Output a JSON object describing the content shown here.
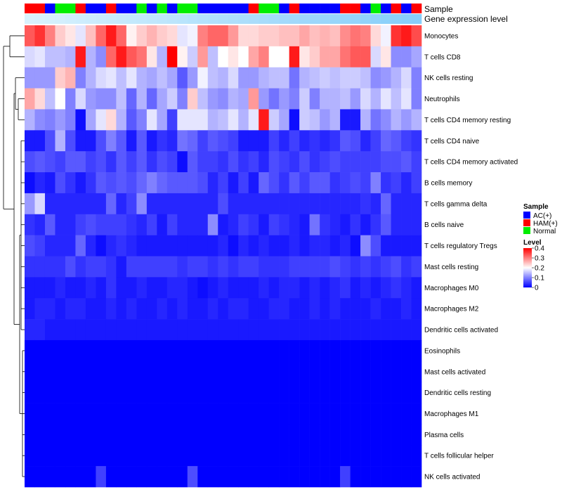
{
  "chart_data": {
    "type": "heatmap",
    "annotation_labels": {
      "sample": "Sample",
      "expression": "Gene expression level"
    },
    "sample_groups": [
      "HAM",
      "HAM",
      "AC",
      "Normal",
      "Normal",
      "HAM",
      "AC",
      "AC",
      "HAM",
      "AC",
      "AC",
      "Normal",
      "AC",
      "Normal",
      "AC",
      "Normal",
      "Normal",
      "AC",
      "AC",
      "AC",
      "AC",
      "AC",
      "HAM",
      "Normal",
      "Normal",
      "AC",
      "HAM",
      "AC",
      "AC",
      "AC",
      "AC",
      "HAM",
      "HAM",
      "AC",
      "Normal",
      "AC",
      "HAM",
      "AC",
      "HAM"
    ],
    "sample_colors": {
      "AC": "#0000FF",
      "HAM": "#FF0000",
      "Normal": "#00EE00"
    },
    "expression_bar_color": "#87CEFA",
    "expression_bar_color_light": "#D9F2FD",
    "rows": [
      "Monocytes",
      "T cells CD8",
      "NK cells resting",
      "Neutrophils",
      "T cells CD4 memory resting",
      "T cells CD4 naive",
      "T cells CD4 memory activated",
      "B cells memory",
      "T cells gamma delta",
      "B cells naive",
      "T cells regulatory  Tregs",
      "Mast cells resting",
      "Macrophages M0",
      "Macrophages M2",
      "Dendritic cells activated",
      "Eosinophils",
      "Mast cells activated",
      "Dendritic cells resting",
      "Macrophages M1",
      "Plasma cells",
      "T cells follicular helper",
      "NK cells activated"
    ],
    "values": [
      [
        0.33,
        0.36,
        0.3,
        0.24,
        0.22,
        0.18,
        0.25,
        0.32,
        0.38,
        0.32,
        0.21,
        0.24,
        0.26,
        0.24,
        0.23,
        0.18,
        0.19,
        0.3,
        0.32,
        0.32,
        0.28,
        0.23,
        0.23,
        0.24,
        0.24,
        0.25,
        0.25,
        0.27,
        0.25,
        0.26,
        0.25,
        0.29,
        0.31,
        0.3,
        0.23,
        0.19,
        0.36,
        0.38,
        0.34
      ],
      [
        0.17,
        0.18,
        0.15,
        0.15,
        0.14,
        0.38,
        0.14,
        0.11,
        0.32,
        0.38,
        0.33,
        0.31,
        0.22,
        0.14,
        0.4,
        0.21,
        0.16,
        0.28,
        0.15,
        0.2,
        0.22,
        0.2,
        0.27,
        0.3,
        0.2,
        0.2,
        0.38,
        0.22,
        0.24,
        0.27,
        0.27,
        0.31,
        0.33,
        0.33,
        0.17,
        0.22,
        0.11,
        0.11,
        0.13
      ],
      [
        0.12,
        0.12,
        0.12,
        0.24,
        0.26,
        0.1,
        0.14,
        0.17,
        0.18,
        0.15,
        0.18,
        0.14,
        0.13,
        0.15,
        0.13,
        0.07,
        0.12,
        0.19,
        0.15,
        0.14,
        0.17,
        0.12,
        0.12,
        0.14,
        0.15,
        0.15,
        0.09,
        0.14,
        0.15,
        0.16,
        0.15,
        0.16,
        0.16,
        0.15,
        0.11,
        0.12,
        0.14,
        0.17,
        0.1
      ],
      [
        0.27,
        0.23,
        0.15,
        0.2,
        0.1,
        0.17,
        0.12,
        0.11,
        0.11,
        0.15,
        0.08,
        0.14,
        0.08,
        0.13,
        0.16,
        0.1,
        0.24,
        0.15,
        0.12,
        0.11,
        0.14,
        0.13,
        0.28,
        0.12,
        0.09,
        0.12,
        0.1,
        0.16,
        0.1,
        0.14,
        0.14,
        0.15,
        0.12,
        0.17,
        0.14,
        0.18,
        0.15,
        0.18,
        0.1
      ],
      [
        0.14,
        0.11,
        0.1,
        0.12,
        0.1,
        0.01,
        0.13,
        0.18,
        0.23,
        0.14,
        0.07,
        0.1,
        0.18,
        0.13,
        0.05,
        0.18,
        0.18,
        0.18,
        0.14,
        0.15,
        0.18,
        0.14,
        0.18,
        0.38,
        0.16,
        0.13,
        0.01,
        0.16,
        0.15,
        0.12,
        0.14,
        0.02,
        0.02,
        0.14,
        0.09,
        0.11,
        0.14,
        0.12,
        0.14
      ],
      [
        0.02,
        0.02,
        0.06,
        0.14,
        0.06,
        0.02,
        0.02,
        0.06,
        0.1,
        0.07,
        0.02,
        0.07,
        0.02,
        0.04,
        0.03,
        0.09,
        0.08,
        0.05,
        0.07,
        0.06,
        0.05,
        0.02,
        0.02,
        0.02,
        0.05,
        0.03,
        0.05,
        0.03,
        0.04,
        0.03,
        0.04,
        0.07,
        0.06,
        0.03,
        0.05,
        0.08,
        0.07,
        0.05,
        0.04
      ],
      [
        0.06,
        0.07,
        0.06,
        0.05,
        0.07,
        0.07,
        0.05,
        0.06,
        0.04,
        0.07,
        0.05,
        0.07,
        0.04,
        0.06,
        0.05,
        0.01,
        0.07,
        0.05,
        0.05,
        0.04,
        0.06,
        0.04,
        0.05,
        0.03,
        0.06,
        0.05,
        0.04,
        0.06,
        0.04,
        0.05,
        0.06,
        0.05,
        0.05,
        0.05,
        0.05,
        0.06,
        0.06,
        0.07,
        0.05
      ],
      [
        0.01,
        0.03,
        0.02,
        0.06,
        0.04,
        0.02,
        0.04,
        0.07,
        0.06,
        0.07,
        0.06,
        0.08,
        0.1,
        0.08,
        0.07,
        0.07,
        0.07,
        0.06,
        0.03,
        0.05,
        0.02,
        0.05,
        0.02,
        0.08,
        0.06,
        0.04,
        0.07,
        0.05,
        0.07,
        0.07,
        0.04,
        0.05,
        0.06,
        0.05,
        0.1,
        0.04,
        0.05,
        0.03,
        0.05
      ],
      [
        0.12,
        0.17,
        0.03,
        0.03,
        0.03,
        0.03,
        0.03,
        0.03,
        0.08,
        0.03,
        0.05,
        0.11,
        0.03,
        0.03,
        0.03,
        0.03,
        0.03,
        0.03,
        0.03,
        0.06,
        0.03,
        0.03,
        0.03,
        0.03,
        0.03,
        0.03,
        0.03,
        0.03,
        0.03,
        0.03,
        0.03,
        0.03,
        0.03,
        0.04,
        0.03,
        0.08,
        0.03,
        0.03,
        0.03
      ],
      [
        0.04,
        0.03,
        0.07,
        0.03,
        0.03,
        0.05,
        0.06,
        0.05,
        0.05,
        0.05,
        0.04,
        0.03,
        0.05,
        0.02,
        0.05,
        0.03,
        0.03,
        0.03,
        0.11,
        0.02,
        0.03,
        0.05,
        0.04,
        0.02,
        0.05,
        0.04,
        0.03,
        0.02,
        0.09,
        0.04,
        0.03,
        0.02,
        0.04,
        0.02,
        0.04,
        0.07,
        0.03,
        0.03,
        0.03
      ],
      [
        0.06,
        0.05,
        0.03,
        0.03,
        0.03,
        0.08,
        0.03,
        0.01,
        0.03,
        0.04,
        0.03,
        0.02,
        0.02,
        0.02,
        0.02,
        0.02,
        0.02,
        0.02,
        0.02,
        0.03,
        0.01,
        0.03,
        0.02,
        0.03,
        0.02,
        0.02,
        0.03,
        0.02,
        0.03,
        0.03,
        0.02,
        0.03,
        0.01,
        0.11,
        0.06,
        0.02,
        0.02,
        0.02,
        0.02
      ],
      [
        0.04,
        0.04,
        0.04,
        0.04,
        0.06,
        0.04,
        0.05,
        0.05,
        0.04,
        0.02,
        0.05,
        0.05,
        0.05,
        0.05,
        0.05,
        0.04,
        0.05,
        0.05,
        0.04,
        0.05,
        0.04,
        0.05,
        0.05,
        0.04,
        0.04,
        0.04,
        0.05,
        0.05,
        0.05,
        0.05,
        0.06,
        0.05,
        0.04,
        0.05,
        0.04,
        0.05,
        0.06,
        0.04,
        0.05
      ],
      [
        0.02,
        0.02,
        0.02,
        0.03,
        0.02,
        0.02,
        0.03,
        0.02,
        0.04,
        0.02,
        0.02,
        0.03,
        0.02,
        0.02,
        0.03,
        0.03,
        0.02,
        0.01,
        0.02,
        0.03,
        0.02,
        0.02,
        0.02,
        0.03,
        0.02,
        0.03,
        0.03,
        0.02,
        0.03,
        0.02,
        0.03,
        0.04,
        0.02,
        0.03,
        0.02,
        0.03,
        0.04,
        0.03,
        0.02
      ],
      [
        0.02,
        0.03,
        0.03,
        0.02,
        0.03,
        0.03,
        0.02,
        0.02,
        0.03,
        0.02,
        0.03,
        0.02,
        0.02,
        0.03,
        0.02,
        0.03,
        0.02,
        0.02,
        0.03,
        0.02,
        0.03,
        0.03,
        0.02,
        0.02,
        0.03,
        0.03,
        0.02,
        0.02,
        0.03,
        0.02,
        0.03,
        0.02,
        0.02,
        0.02,
        0.03,
        0.02,
        0.02,
        0.03,
        0.02
      ],
      [
        0.03,
        0.03,
        0.02,
        0.02,
        0.02,
        0.02,
        0.02,
        0.02,
        0.02,
        0.02,
        0.02,
        0.02,
        0.02,
        0.02,
        0.02,
        0.02,
        0.02,
        0.02,
        0.02,
        0.02,
        0.02,
        0.02,
        0.02,
        0.02,
        0.02,
        0.02,
        0.02,
        0.02,
        0.02,
        0.02,
        0.02,
        0.02,
        0.02,
        0.02,
        0.02,
        0.02,
        0.02,
        0.02,
        0.02
      ],
      [
        0,
        0,
        0,
        0,
        0,
        0,
        0,
        0,
        0,
        0,
        0,
        0,
        0,
        0,
        0,
        0,
        0,
        0,
        0,
        0,
        0,
        0,
        0,
        0,
        0,
        0,
        0,
        0,
        0,
        0,
        0,
        0,
        0,
        0,
        0,
        0,
        0,
        0,
        0
      ],
      [
        0,
        0,
        0,
        0,
        0,
        0,
        0,
        0,
        0,
        0,
        0,
        0,
        0,
        0,
        0,
        0,
        0,
        0,
        0,
        0,
        0,
        0,
        0,
        0,
        0,
        0,
        0,
        0,
        0,
        0,
        0,
        0,
        0,
        0,
        0,
        0,
        0,
        0,
        0
      ],
      [
        0,
        0,
        0,
        0,
        0,
        0,
        0,
        0,
        0,
        0,
        0,
        0,
        0,
        0,
        0,
        0,
        0,
        0,
        0,
        0,
        0,
        0,
        0,
        0,
        0,
        0,
        0,
        0,
        0,
        0,
        0,
        0,
        0,
        0,
        0,
        0,
        0,
        0,
        0
      ],
      [
        0,
        0,
        0,
        0,
        0,
        0,
        0,
        0,
        0,
        0,
        0,
        0,
        0,
        0,
        0,
        0,
        0,
        0,
        0,
        0,
        0,
        0,
        0,
        0,
        0,
        0,
        0,
        0,
        0,
        0,
        0,
        0,
        0,
        0,
        0,
        0,
        0,
        0,
        0
      ],
      [
        0,
        0,
        0,
        0,
        0,
        0,
        0,
        0,
        0,
        0,
        0,
        0,
        0,
        0,
        0,
        0,
        0,
        0,
        0,
        0,
        0,
        0,
        0,
        0,
        0,
        0,
        0,
        0,
        0,
        0,
        0,
        0,
        0,
        0,
        0,
        0,
        0,
        0,
        0
      ],
      [
        0,
        0,
        0,
        0,
        0,
        0,
        0,
        0,
        0,
        0,
        0,
        0,
        0,
        0,
        0,
        0,
        0,
        0,
        0,
        0,
        0,
        0,
        0,
        0,
        0,
        0,
        0,
        0,
        0,
        0,
        0,
        0,
        0,
        0,
        0,
        0,
        0,
        0,
        0
      ],
      [
        0,
        0,
        0,
        0,
        0,
        0,
        0,
        0.05,
        0,
        0,
        0,
        0,
        0,
        0,
        0,
        0,
        0.06,
        0,
        0,
        0,
        0,
        0,
        0,
        0,
        0,
        0,
        0,
        0,
        0,
        0,
        0,
        0.05,
        0,
        0,
        0,
        0,
        0,
        0,
        0
      ]
    ],
    "legend": {
      "sample_title": "Sample",
      "sample_items": [
        {
          "key": "AC",
          "label": "AC(+)"
        },
        {
          "key": "HAM",
          "label": "HAM(+)"
        },
        {
          "key": "Normal",
          "label": "Normal"
        }
      ],
      "level_title": "Level",
      "level_ticks": [
        0.4,
        0.3,
        0.2,
        0.1,
        0
      ],
      "level_tick_labels": [
        "0.4",
        "0.3",
        "0.2",
        "0.1",
        "0"
      ],
      "scale_min": 0,
      "scale_mid": 0.2,
      "scale_max": 0.4,
      "color_low": "#0000FF",
      "color_mid": "#FFFFFF",
      "color_high": "#FF0000"
    }
  }
}
